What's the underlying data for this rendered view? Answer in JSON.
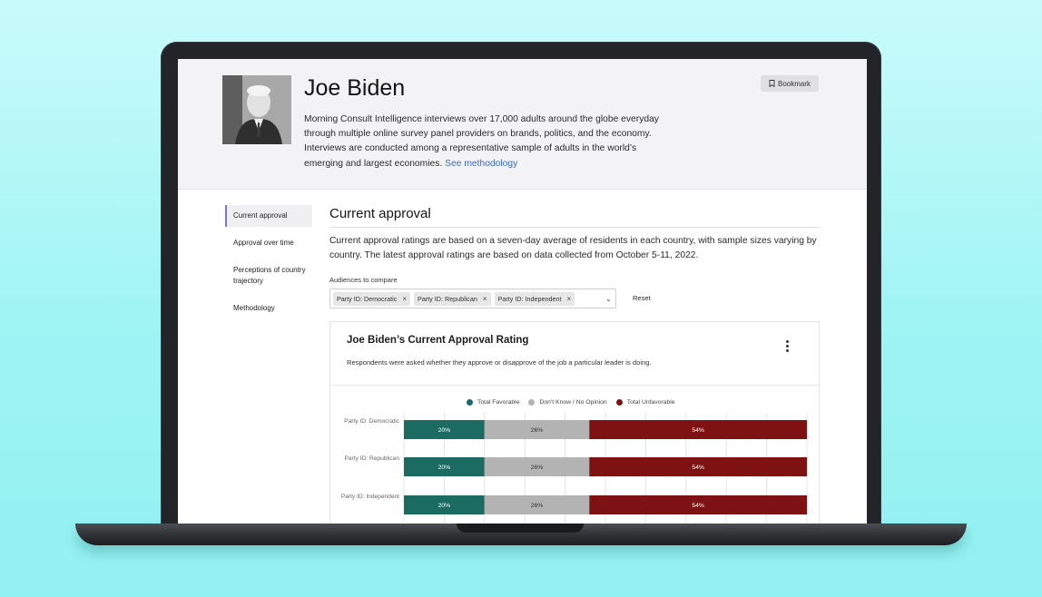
{
  "leader": {
    "name": "Joe Biden",
    "description": "Morning Consult Intelligence interviews over 17,000 adults around the globe everyday through multiple online survey panel providers on brands, politics, and the economy. Interviews are conducted among a representative sample of adults in the world’s emerging and largest economies.",
    "methodology_link": "See methodology",
    "bookmark_label": "Bookmark"
  },
  "sidebar": {
    "items": [
      {
        "label": "Current approval"
      },
      {
        "label": "Approval over time"
      },
      {
        "label": "Perceptions of country trajectory"
      },
      {
        "label": "Methodology"
      }
    ]
  },
  "section": {
    "title": "Current approval",
    "description": "Current approval ratings are based on a seven-day average of residents in each country, with sample sizes varying by country. The latest approval ratings are based on data collected from October 5-11, 2022."
  },
  "audiences": {
    "label": "Audiences to compare",
    "chips": [
      "Party ID: Democratic",
      "Party ID: Republican",
      "Party ID: Independent"
    ],
    "remove_glyph": "×",
    "caret": "⌄",
    "reset_label": "Reset"
  },
  "chart_card": {
    "title": "Joe Biden’s Current Approval Rating",
    "subtitle": "Respondents were asked whether they approve or disapprove of the job a particular leader is doing."
  },
  "colors": {
    "favorable": "#1b6b63",
    "neutral": "#b3b3b3",
    "unfavorable": "#7e1212",
    "accent_link": "#3c6bc4",
    "sidebar_active": "#6f78d6"
  },
  "chart_data": {
    "type": "bar",
    "orientation": "horizontal-stacked",
    "categories": [
      "Party ID: Democratic",
      "Party ID: Republican",
      "Party ID: Independent"
    ],
    "series": [
      {
        "name": "Total Favorable",
        "values": [
          20,
          20,
          20
        ],
        "color": "#1b6b63"
      },
      {
        "name": "Don't Know / No Opinion",
        "values": [
          26,
          26,
          26
        ],
        "color": "#b3b3b3"
      },
      {
        "name": "Total Unfavorable",
        "values": [
          54,
          54,
          54
        ],
        "color": "#7e1212"
      }
    ],
    "value_suffix": "%",
    "xlim": [
      0,
      100
    ],
    "grid": true,
    "legend_position": "top"
  }
}
